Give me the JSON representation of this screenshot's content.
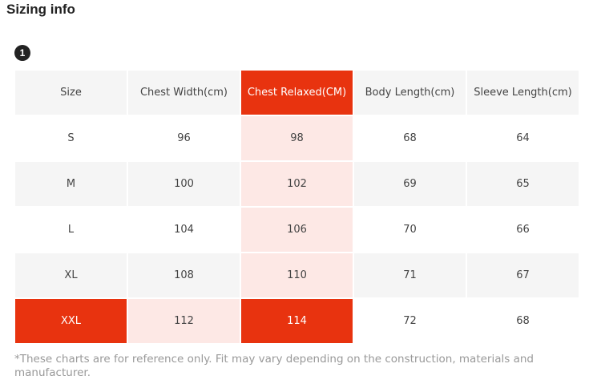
{
  "title": "Sizing info",
  "badge": "1",
  "table": {
    "headers": [
      "Size",
      "Chest Width(cm)",
      "Chest Relaxed(CM)",
      "Body Length(cm)",
      "Sleeve Length(cm)"
    ],
    "rows": [
      [
        "S",
        "96",
        "98",
        "68",
        "64"
      ],
      [
        "M",
        "100",
        "102",
        "69",
        "65"
      ],
      [
        "L",
        "104",
        "106",
        "70",
        "66"
      ],
      [
        "XL",
        "108",
        "110",
        "71",
        "67"
      ],
      [
        "XXL",
        "112",
        "114",
        "72",
        "68"
      ]
    ],
    "highlight_color": "#e8330f",
    "highlight_light": "#fde8e5"
  },
  "note": "*These charts are for reference only. Fit may vary depending on the construction, materials and manufacturer."
}
